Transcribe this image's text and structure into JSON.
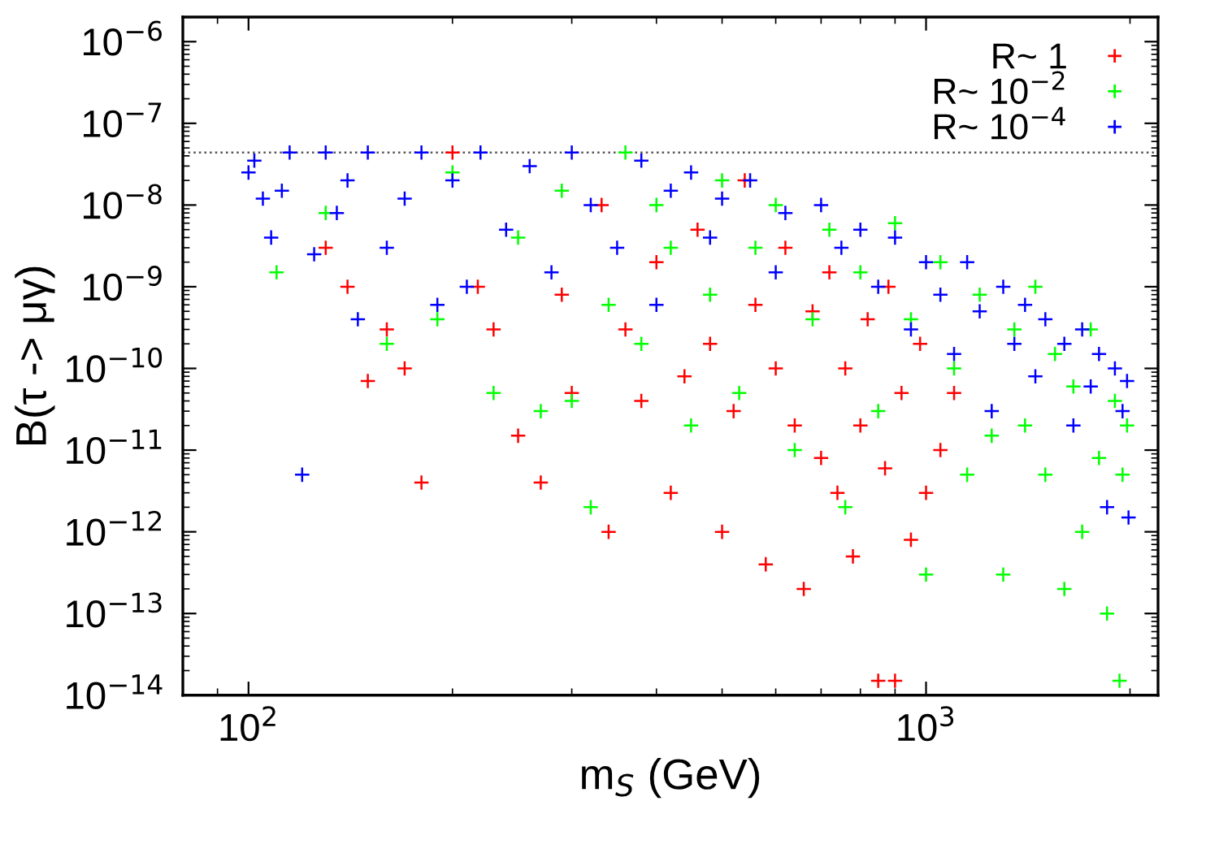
{
  "chart_data": {
    "type": "scatter",
    "xlabel": "m$_{S}$ (GeV)",
    "ylabel": "B(τ -> μγ)",
    "log": "xy",
    "xlim": [
      80,
      2200
    ],
    "ylim": [
      1e-14,
      2e-06
    ],
    "xticks": [
      {
        "value": 100,
        "label": "10$^{2}$"
      },
      {
        "value": 1000,
        "label": "10$^{3}$"
      }
    ],
    "yticks": [
      {
        "value": 1e-14,
        "label": "10$^{−14}$"
      },
      {
        "value": 1e-13,
        "label": "10$^{−13}$"
      },
      {
        "value": 1e-12,
        "label": "10$^{−12}$"
      },
      {
        "value": 1e-11,
        "label": "10$^{−11}$"
      },
      {
        "value": 1e-10,
        "label": "10$^{−10}$"
      },
      {
        "value": 1e-09,
        "label": "10$^{−9}$"
      },
      {
        "value": 1e-08,
        "label": "10$^{−8}$"
      },
      {
        "value": 1e-07,
        "label": "10$^{−7}$"
      },
      {
        "value": 1e-06,
        "label": "10$^{−6}$"
      }
    ],
    "marker": "cross",
    "legend": "top right",
    "grid": false,
    "ref_lines": [
      {
        "axis": "y",
        "value": 4.4e-08,
        "label": null,
        "color": "#555555",
        "line_style": "dotted"
      }
    ],
    "series": [
      {
        "name": "R~ 1",
        "color": "#ff0000",
        "x": [
          130,
          140,
          150,
          160,
          170,
          180,
          200,
          218,
          230,
          250,
          270,
          290,
          300,
          332,
          340,
          360,
          380,
          400,
          420,
          440,
          460,
          480,
          500,
          520,
          540,
          560,
          580,
          600,
          620,
          640,
          660,
          680,
          700,
          720,
          740,
          760,
          780,
          800,
          820,
          850,
          870,
          880,
          900,
          920,
          950,
          980,
          1000,
          1050,
          1100
        ],
        "values": [
          3e-09,
          1e-09,
          7e-11,
          3e-10,
          1e-10,
          4e-12,
          4.4e-08,
          1e-09,
          3e-10,
          1.5e-11,
          4e-12,
          8e-10,
          5e-11,
          1e-08,
          1e-12,
          3e-10,
          4e-11,
          2e-09,
          3e-12,
          8e-11,
          5e-09,
          2e-10,
          1e-12,
          3e-11,
          2e-08,
          6e-10,
          4e-13,
          1e-10,
          3e-09,
          2e-11,
          2e-13,
          5e-10,
          8e-12,
          1.5e-09,
          3e-12,
          1e-10,
          5e-13,
          2e-11,
          4e-10,
          1.5e-14,
          6e-12,
          1e-09,
          1.5e-14,
          5e-11,
          8e-13,
          2e-10,
          3e-12,
          1e-11,
          5e-11
        ]
      },
      {
        "name": "R~ 10$^{−2}$",
        "color": "#00ff00",
        "x": [
          110,
          130,
          160,
          190,
          200,
          230,
          250,
          270,
          290,
          300,
          320,
          340,
          360,
          380,
          400,
          420,
          450,
          480,
          500,
          530,
          560,
          600,
          640,
          680,
          720,
          760,
          800,
          850,
          900,
          950,
          1000,
          1050,
          1100,
          1150,
          1200,
          1250,
          1300,
          1350,
          1400,
          1450,
          1500,
          1550,
          1600,
          1650,
          1700,
          1750,
          1800,
          1850,
          1900,
          1930,
          1950,
          1980
        ],
        "values": [
          1.5e-09,
          8e-09,
          2e-10,
          4e-10,
          2.5e-08,
          5e-11,
          4e-09,
          3e-11,
          1.5e-08,
          4e-11,
          2e-12,
          6e-10,
          4.4e-08,
          2e-10,
          1e-08,
          3e-09,
          2e-11,
          8e-10,
          2e-08,
          5e-11,
          3e-09,
          1e-08,
          1e-11,
          4e-10,
          5e-09,
          2e-12,
          1.5e-09,
          3e-11,
          6e-09,
          4e-10,
          3e-13,
          2e-09,
          1e-10,
          5e-12,
          8e-10,
          1.5e-11,
          3e-13,
          3e-10,
          2e-11,
          1e-09,
          5e-12,
          1.5e-10,
          2e-13,
          6e-11,
          1e-12,
          3e-10,
          8e-12,
          1e-13,
          4e-11,
          1.5e-14,
          5e-12,
          2e-11
        ]
      },
      {
        "name": "R~ 10$^{−4}$",
        "color": "#0000ff",
        "x": [
          100,
          102,
          105,
          108,
          112,
          115,
          120,
          125,
          130,
          135,
          140,
          145,
          150,
          160,
          170,
          180,
          190,
          200,
          210,
          220,
          240,
          260,
          280,
          300,
          320,
          350,
          380,
          400,
          420,
          450,
          480,
          500,
          550,
          600,
          620,
          700,
          750,
          800,
          850,
          900,
          950,
          1000,
          1050,
          1100,
          1150,
          1200,
          1250,
          1300,
          1350,
          1400,
          1450,
          1500,
          1600,
          1650,
          1700,
          1750,
          1800,
          1850,
          1900,
          1950,
          1980,
          1990
        ],
        "values": [
          2.5e-08,
          3.5e-08,
          1.2e-08,
          4e-09,
          1.5e-08,
          4.4e-08,
          5e-12,
          2.5e-09,
          4.4e-08,
          8e-09,
          2e-08,
          4e-10,
          4.4e-08,
          3e-09,
          1.2e-08,
          4.4e-08,
          6e-10,
          2e-08,
          1e-09,
          4.4e-08,
          5e-09,
          3e-08,
          1.5e-09,
          4.4e-08,
          1e-08,
          3e-09,
          3.5e-08,
          6e-10,
          1.5e-08,
          2.5e-08,
          4e-09,
          1.2e-08,
          2e-08,
          1.5e-09,
          8e-09,
          1e-08,
          3e-09,
          5e-09,
          1e-09,
          4e-09,
          3e-10,
          2e-09,
          8e-10,
          1.5e-10,
          2e-09,
          5e-10,
          3e-11,
          1e-09,
          2e-10,
          6e-10,
          8e-11,
          4e-10,
          2e-10,
          2e-11,
          3e-10,
          6e-11,
          1.5e-10,
          2e-12,
          1e-10,
          3e-11,
          7e-11,
          1.5e-12
        ]
      }
    ]
  }
}
